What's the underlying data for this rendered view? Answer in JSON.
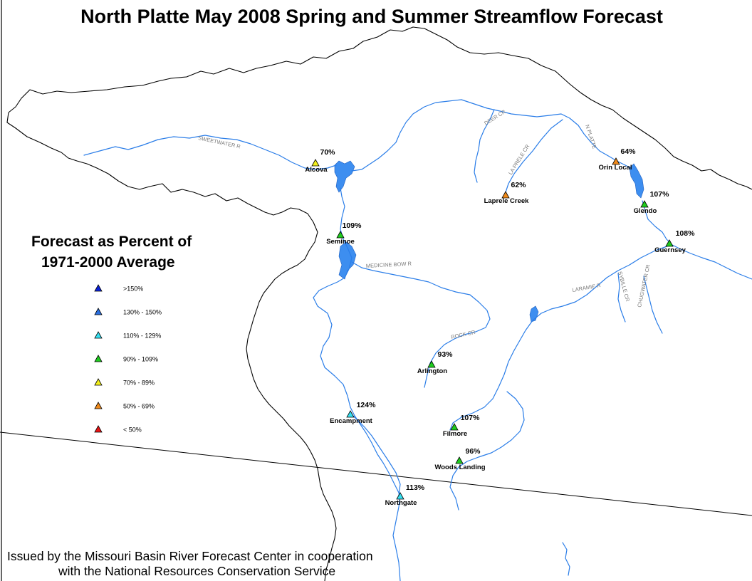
{
  "title": "North Platte May 2008 Spring and Summer Streamflow Forecast",
  "legend": {
    "title_line1": "Forecast as Percent of",
    "title_line2": "1971-2000 Average",
    "classes": [
      {
        "label": ">150%",
        "color": "#0a22d8"
      },
      {
        "label": "130% - 150%",
        "color": "#2a6fe0"
      },
      {
        "label": "110% - 129%",
        "color": "#36e0f0"
      },
      {
        "label": "90% - 109%",
        "color": "#1ecc1e"
      },
      {
        "label": "70% - 89%",
        "color": "#f2ef1a"
      },
      {
        "label": "50% - 69%",
        "color": "#f08a1a"
      },
      {
        "label": "< 50%",
        "color": "#e81414"
      }
    ]
  },
  "stations": [
    {
      "name": "Alcova",
      "percent": "70%",
      "color": "#f2ef1a"
    },
    {
      "name": "Seminoe",
      "percent": "109%",
      "color": "#1ecc1e"
    },
    {
      "name": "Laprele Creek",
      "percent": "62%",
      "color": "#f08a1a"
    },
    {
      "name": "Orin Local",
      "percent": "64%",
      "color": "#f08a1a"
    },
    {
      "name": "Glendo",
      "percent": "107%",
      "color": "#1ecc1e"
    },
    {
      "name": "Guernsey",
      "percent": "108%",
      "color": "#1ecc1e"
    },
    {
      "name": "Arlington",
      "percent": "93%",
      "color": "#1ecc1e"
    },
    {
      "name": "Encampment",
      "percent": "124%",
      "color": "#36e0f0"
    },
    {
      "name": "Filmore",
      "percent": "107%",
      "color": "#1ecc1e"
    },
    {
      "name": "Woods Landing",
      "percent": "96%",
      "color": "#1ecc1e"
    },
    {
      "name": "Northgate",
      "percent": "113%",
      "color": "#36e0f0"
    }
  ],
  "rivers": [
    "SWEETWATER R",
    "DEER CR",
    "LA PRELE CR",
    "N PLATTE",
    "MEDICINE BOW R",
    "LARAMIE R",
    "SYBILLE CR",
    "CHUGWATER CR",
    "ROCK CR"
  ],
  "credit": {
    "line1": "Issued by the Missouri Basin River Forecast Center in cooperation",
    "line2": "with the National Resources Conservation Service"
  }
}
